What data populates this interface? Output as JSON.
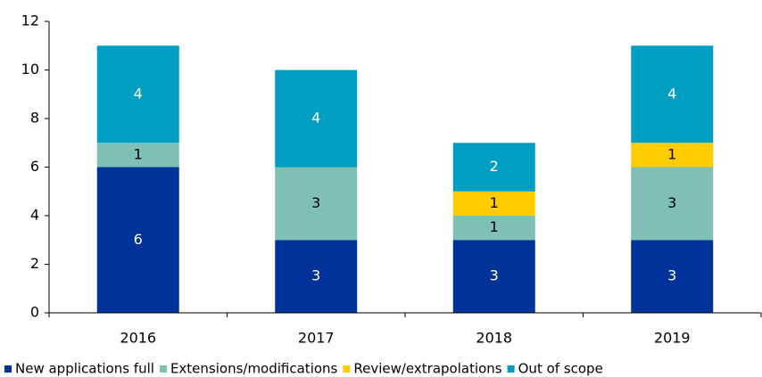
{
  "chart_data": {
    "type": "stacked_bar",
    "categories": [
      "2016",
      "2017",
      "2018",
      "2019"
    ],
    "series": [
      {
        "name": "New applications full",
        "color": "#003399",
        "values": [
          6,
          3,
          3,
          3
        ]
      },
      {
        "name": "Extensions/modifications",
        "color": "#7fbfb4",
        "values": [
          1,
          3,
          1,
          3
        ]
      },
      {
        "name": "Review/extrapolations",
        "color": "#ffcc00",
        "values": [
          0,
          0,
          1,
          1
        ]
      },
      {
        "name": "Out of scope",
        "color": "#009ec1",
        "values": [
          4,
          4,
          2,
          4
        ]
      }
    ],
    "ylim": [
      0,
      12
    ],
    "yticks": [
      0,
      2,
      4,
      6,
      8,
      10,
      12
    ],
    "grid": false,
    "legend": "bottom"
  }
}
